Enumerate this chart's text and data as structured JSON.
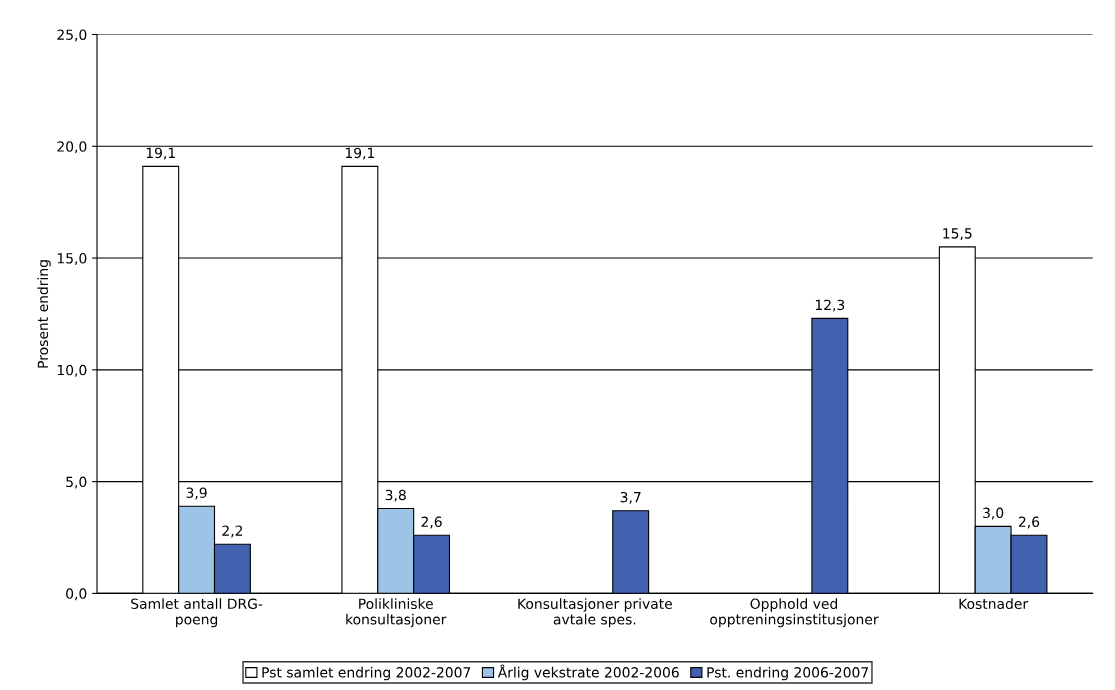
{
  "chart_data": {
    "type": "bar",
    "ylabel": "Prosent endring",
    "categories": [
      "Samlet antall DRG-\npoeng",
      "Polikliniske\nkonsultasjoner",
      "Konsultasjoner private\navtale spes.",
      "Opphold ved\nopptreningsinstitusjoner",
      "Kostnader"
    ],
    "series": [
      {
        "name": "Pst samlet endring 2002-2007",
        "color": "#ffffff",
        "values": [
          19.1,
          19.1,
          null,
          null,
          15.5
        ],
        "value_labels": [
          "19,1",
          "19,1",
          null,
          null,
          "15,5"
        ]
      },
      {
        "name": "Årlig vekstrate 2002-2006",
        "color": "#9dc3e6",
        "values": [
          3.9,
          3.8,
          null,
          null,
          3.0
        ],
        "value_labels": [
          "3,9",
          "3,8",
          null,
          null,
          "3,0"
        ]
      },
      {
        "name": "Pst. endring 2006-2007",
        "color": "#4262b0",
        "values": [
          2.2,
          2.6,
          3.7,
          12.3,
          2.6
        ],
        "value_labels": [
          "2,2",
          "2,6",
          "3,7",
          "12,3",
          "2,6"
        ]
      }
    ],
    "ylim": [
      0,
      25
    ],
    "yticks": [
      {
        "value": 0,
        "label": "0,0"
      },
      {
        "value": 5,
        "label": "5,0"
      },
      {
        "value": 10,
        "label": "10,0"
      },
      {
        "value": 15,
        "label": "15,0"
      },
      {
        "value": 20,
        "label": "20,0"
      },
      {
        "value": 25,
        "label": "25,0"
      }
    ],
    "grid": "y",
    "legend": "bottom"
  }
}
